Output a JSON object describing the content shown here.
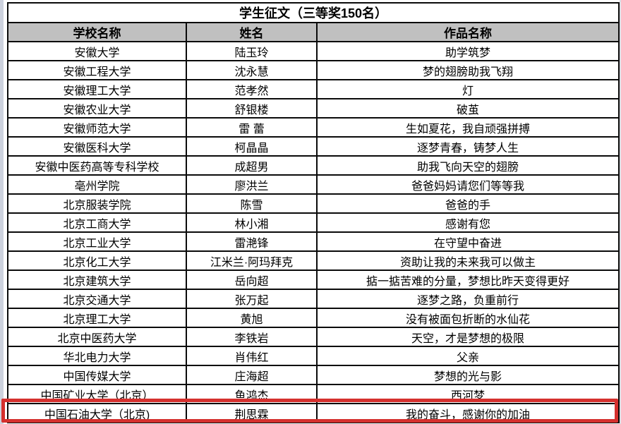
{
  "title": "学生征文（三等奖150名）",
  "table": {
    "headers": [
      "学校名称",
      "姓名",
      "作品名称"
    ],
    "rows": [
      [
        "安徽大学",
        "陆玉玲",
        "助学筑梦"
      ],
      [
        "安徽工程大学",
        "沈永慧",
        "梦的翅膀助我飞翔"
      ],
      [
        "安徽理工大学",
        "范孝然",
        "灯"
      ],
      [
        "安徽农业大学",
        "舒银楼",
        "破茧"
      ],
      [
        "安徽师范大学",
        "雷 蕾",
        "生如夏花，我自顽强拼搏"
      ],
      [
        "安徽医科大学",
        "柯晶晶",
        "逐梦青春，铸梦人生"
      ],
      [
        "安徽中医药高等专科学校",
        "成超男",
        "助我飞向天空的翅膀"
      ],
      [
        "亳州学院",
        "廖洪兰",
        "爸爸妈妈请您们等等我"
      ],
      [
        "北京服装学院",
        "陈雪",
        "爸爸的手"
      ],
      [
        "北京工商大学",
        "林小湘",
        "感谢有您"
      ],
      [
        "北京工业大学",
        "雷滟锋",
        "在守望中奋进"
      ],
      [
        "北京化工大学",
        "江米兰·阿玛拜克",
        "资助让我的未来我可以做主"
      ],
      [
        "北京建筑大学",
        "岳向超",
        "掂一掂苦难的分量，梦想比昨天变得更好"
      ],
      [
        "北京交通大学",
        "张万起",
        "逐梦之路，负重前行"
      ],
      [
        "北京理工大学",
        "黄旭",
        "没有被面包折断的水仙花"
      ],
      [
        "北京中医药大学",
        "李铁岩",
        "天空，才是梦想的极限"
      ],
      [
        "华北电力大学",
        "肖伟红",
        "父亲"
      ],
      [
        "中国传媒大学",
        "庄海超",
        "梦想的光与影"
      ],
      [
        "中国矿业大学（北京）",
        "鱼鸿杰",
        "西河梦"
      ],
      [
        "中国石油大学（北京)",
        "荆思霖",
        "我的奋斗，感谢你的加油"
      ]
    ],
    "highlighted_row_index": 19,
    "highlight_color": "#d5302e",
    "header_bg_color": "#c0c0c0"
  }
}
